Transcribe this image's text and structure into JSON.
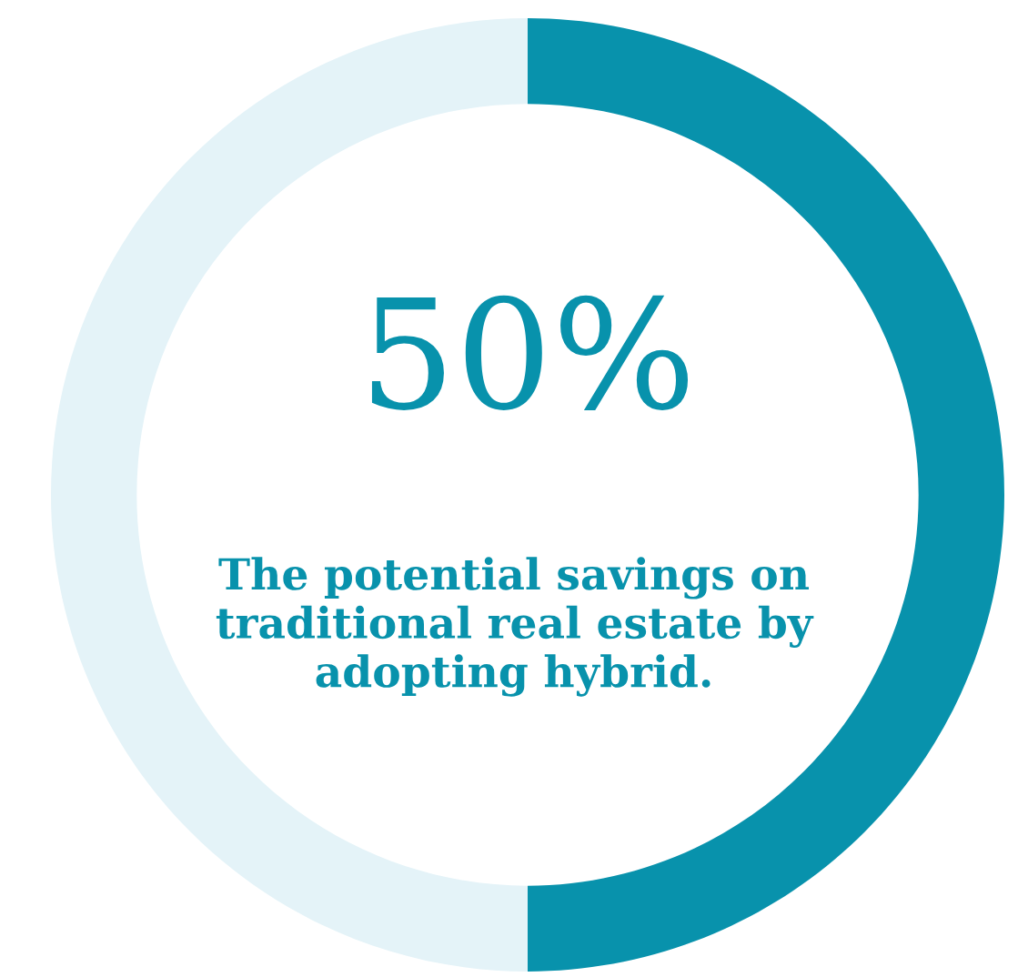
{
  "chart_data": {
    "type": "donut",
    "categories": [
      null,
      null
    ],
    "values": [
      50,
      50
    ],
    "colors": [
      "#0892ac",
      "#e4f3f8"
    ],
    "annotations": [
      "50%",
      "The potential savings on traditional real estate by adopting hybrid."
    ]
  }
}
